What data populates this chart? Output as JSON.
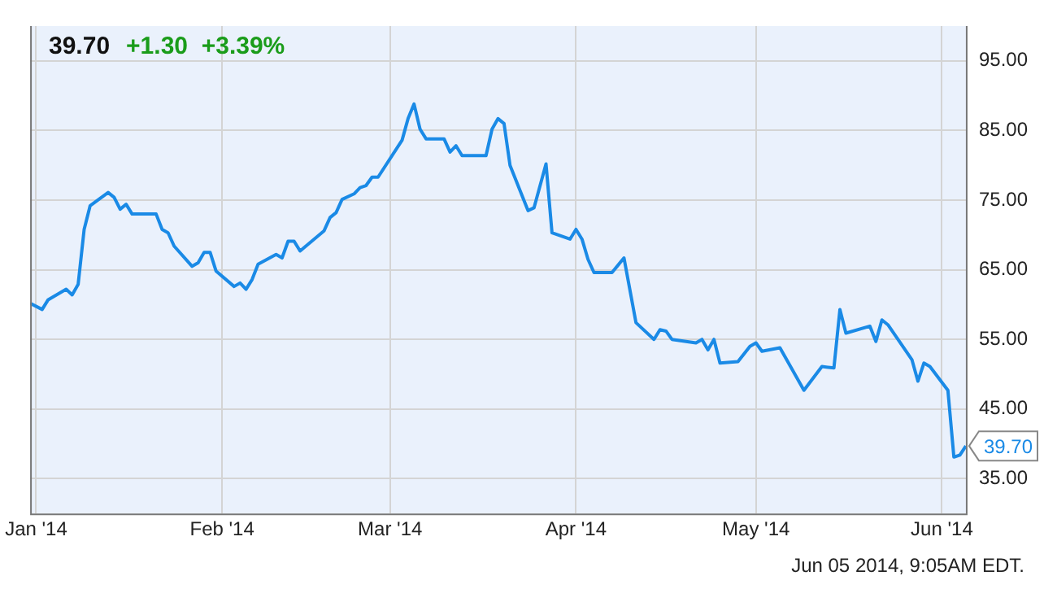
{
  "chart_data": {
    "type": "line",
    "title": "39.70",
    "subtitle": "+1.30  +3.39%",
    "x": [
      "2013-12-31",
      "2014-01-02",
      "2014-01-03",
      "2014-01-06",
      "2014-01-07",
      "2014-01-08",
      "2014-01-09",
      "2014-01-10",
      "2014-01-13",
      "2014-01-14",
      "2014-01-15",
      "2014-01-16",
      "2014-01-17",
      "2014-01-21",
      "2014-01-22",
      "2014-01-23",
      "2014-01-24",
      "2014-01-27",
      "2014-01-28",
      "2014-01-29",
      "2014-01-30",
      "2014-01-31",
      "2014-02-03",
      "2014-02-04",
      "2014-02-05",
      "2014-02-06",
      "2014-02-07",
      "2014-02-10",
      "2014-02-11",
      "2014-02-12",
      "2014-02-13",
      "2014-02-14",
      "2014-02-18",
      "2014-02-19",
      "2014-02-20",
      "2014-02-21",
      "2014-02-23",
      "2014-02-24",
      "2014-02-25",
      "2014-02-26",
      "2014-02-27",
      "2014-03-03",
      "2014-03-04",
      "2014-03-05",
      "2014-03-06",
      "2014-03-07",
      "2014-03-10",
      "2014-03-11",
      "2014-03-12",
      "2014-03-13",
      "2014-03-17",
      "2014-03-18",
      "2014-03-19",
      "2014-03-20",
      "2014-03-21",
      "2014-03-24",
      "2014-03-25",
      "2014-03-27",
      "2014-03-28",
      "2014-03-31",
      "2014-04-01",
      "2014-04-02",
      "2014-04-03",
      "2014-04-04",
      "2014-04-07",
      "2014-04-09",
      "2014-04-11",
      "2014-04-14",
      "2014-04-15",
      "2014-04-16",
      "2014-04-17",
      "2014-04-21",
      "2014-04-22",
      "2014-04-23",
      "2014-04-24",
      "2014-04-25",
      "2014-04-28",
      "2014-04-30",
      "2014-05-01",
      "2014-05-02",
      "2014-05-05",
      "2014-05-09",
      "2014-05-12",
      "2014-05-14",
      "2014-05-15",
      "2014-05-16",
      "2014-05-20",
      "2014-05-21",
      "2014-05-22",
      "2014-05-23",
      "2014-05-27",
      "2014-05-28",
      "2014-05-29",
      "2014-05-30",
      "2014-06-02",
      "2014-06-03",
      "2014-06-04",
      "2014-06-05"
    ],
    "series": [
      {
        "color": "#1a8ae6",
        "values": [
          60.2,
          59.3,
          60.7,
          62.2,
          61.4,
          62.9,
          70.8,
          74.2,
          76.1,
          75.4,
          73.7,
          74.4,
          73.0,
          73.0,
          70.8,
          70.3,
          68.4,
          65.5,
          66.0,
          67.5,
          67.5,
          64.8,
          62.6,
          63.1,
          62.2,
          63.6,
          65.8,
          67.2,
          66.7,
          69.1,
          69.1,
          67.7,
          70.6,
          72.5,
          73.2,
          75.1,
          75.9,
          76.8,
          77.1,
          78.3,
          78.3,
          83.6,
          86.7,
          88.8,
          85.2,
          83.8,
          83.8,
          81.9,
          82.8,
          81.4,
          81.4,
          85.2,
          86.7,
          86.0,
          80.0,
          73.5,
          73.9,
          80.2,
          70.3,
          69.4,
          70.8,
          69.4,
          66.5,
          64.6,
          64.6,
          66.7,
          57.4,
          55.0,
          56.4,
          56.2,
          55.0,
          54.5,
          55.0,
          53.5,
          55.0,
          51.6,
          51.8,
          54.0,
          54.5,
          53.3,
          53.8,
          47.7,
          51.1,
          50.9,
          59.3,
          55.9,
          56.9,
          54.7,
          57.8,
          57.1,
          52.1,
          49.0,
          51.6,
          51.1,
          47.7,
          38.1,
          38.4,
          39.7
        ]
      }
    ],
    "xlim": [
      "2013-12-31",
      "2014-06-05"
    ],
    "xticks": [
      {
        "value": "2014-01-01",
        "label": "Jan '14"
      },
      {
        "value": "2014-02-01",
        "label": "Feb '14"
      },
      {
        "value": "2014-03-01",
        "label": "Mar '14"
      },
      {
        "value": "2014-04-01",
        "label": "Apr '14"
      },
      {
        "value": "2014-05-01",
        "label": "May '14"
      },
      {
        "value": "2014-06-01",
        "label": "Jun '14"
      }
    ],
    "ylim": [
      30,
      100
    ],
    "yticks": [
      {
        "value": 35,
        "label": "35.00"
      },
      {
        "value": 45,
        "label": "45.00"
      },
      {
        "value": 55,
        "label": "55.00"
      },
      {
        "value": 65,
        "label": "65.00"
      },
      {
        "value": 75,
        "label": "75.00"
      },
      {
        "value": 85,
        "label": "85.00"
      },
      {
        "value": 95,
        "label": "95.00"
      }
    ],
    "grid": true,
    "legend": false,
    "marker": "none",
    "line_style": "solid",
    "annotations": [
      {
        "text": "39.70",
        "x": "2014-06-05",
        "y": 39.7
      },
      "Jun 05 2014, 9:05AM EDT."
    ]
  }
}
